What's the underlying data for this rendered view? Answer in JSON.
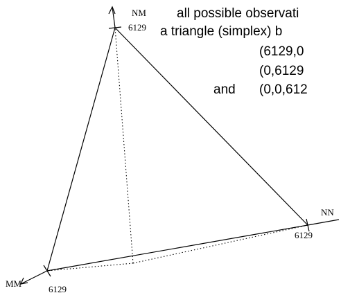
{
  "caption": {
    "lines": [
      "all possible observati",
      "a triangle (simplex) b",
      "(6129,0",
      "(0,6129",
      "and",
      "(0,0,612"
    ]
  },
  "axes": {
    "nm": {
      "label": "NM",
      "tick": "6129"
    },
    "nn": {
      "label": "NN",
      "tick": "6129"
    },
    "mm": {
      "label": "MM",
      "tick": "6129"
    }
  }
}
